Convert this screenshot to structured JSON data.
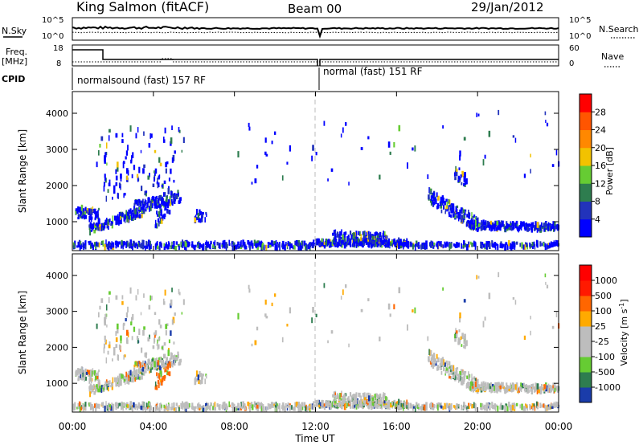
{
  "header": {
    "title": "King Salmon (fitACF)",
    "beam": "Beam 00",
    "date": "29/Jan/2012"
  },
  "panels": {
    "nsky_label": "N.Sky",
    "nsearch_label": "N.Search",
    "freq_label": "Freq.",
    "freq_unit": "[MHz]",
    "nave_label": "Nave",
    "cpid_label": "CPID",
    "cpid_left": "normalsound (fast) 157 RF",
    "cpid_right": "normal (fast) 151 RF",
    "nsky_ticks": [
      "10^5",
      "10^0"
    ],
    "nsearch_ticks": [
      "10^5",
      "10^0"
    ],
    "freq_ticks": [
      "18",
      "8"
    ],
    "nave_ticks": [
      "60",
      "0"
    ]
  },
  "chart_data": [
    {
      "type": "heatmap",
      "name": "power",
      "ylabel": "Slant Range [km]",
      "xlabel": "Time UT",
      "x_ticks": [
        "00:00",
        "04:00",
        "08:00",
        "12:00",
        "16:00",
        "20:00",
        "00:00"
      ],
      "y_ticks": [
        1000,
        2000,
        3000,
        4000
      ],
      "ylim": [
        200,
        4600
      ],
      "xlim_hours": [
        0,
        24
      ],
      "colorbar": {
        "label": "Power [dB]",
        "ticks": [
          4,
          8,
          12,
          16,
          20,
          24,
          28
        ],
        "colors": [
          "#0000ff",
          "#2233bb",
          "#2e7d4f",
          "#66cc33",
          "#f2c200",
          "#ff8800",
          "#ff5500",
          "#ff0000"
        ]
      }
    },
    {
      "type": "heatmap",
      "name": "velocity",
      "ylabel": "Slant Range [km]",
      "xlabel": "Time UT",
      "x_ticks": [
        "00:00",
        "04:00",
        "08:00",
        "12:00",
        "16:00",
        "20:00",
        "00:00"
      ],
      "y_ticks": [
        1000,
        2000,
        3000,
        4000
      ],
      "ylim": [
        200,
        4600
      ],
      "xlim_hours": [
        0,
        24
      ],
      "colorbar": {
        "label": "Velocity [m s^-1]",
        "ticks": [
          "1000",
          "500",
          "100",
          "25",
          "-25",
          "-100",
          "-500",
          "-1000"
        ],
        "colors": [
          "#1a3caa",
          "#2e7d4f",
          "#66cc33",
          "#bdbdbd",
          "#bdbdbd",
          "#ffaa00",
          "#ff6600",
          "#ff1a00",
          "#ff0000"
        ]
      }
    }
  ],
  "xaxis_title": "Time UT"
}
